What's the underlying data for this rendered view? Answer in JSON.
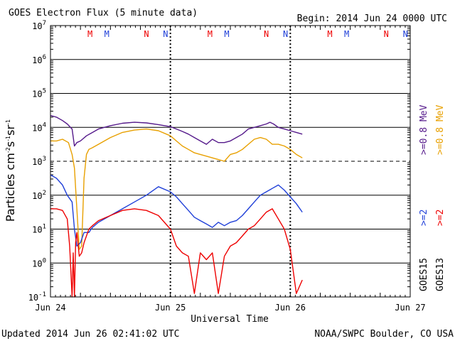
{
  "chart_data": {
    "type": "line",
    "title": "GOES Electron Flux (5 minute data)",
    "begin_label": "Begin: 2014 Jun 24 0000 UTC",
    "xlabel": "Universal Time",
    "ylabel": {
      "base": "Particles cm",
      "e1": "-2",
      "s": "s",
      "e2": "-1",
      "sr": "sr",
      "e3": "-1"
    },
    "x_tick_labels": [
      "Jun 24",
      "Jun 25",
      "Jun 26",
      "Jun 27"
    ],
    "xlim_days": [
      0,
      3
    ],
    "ylim_exp": [
      -1,
      7
    ],
    "y_ticks": [
      {
        "base": "10",
        "exp": "7"
      },
      {
        "base": "10",
        "exp": "6"
      },
      {
        "base": "10",
        "exp": "5"
      },
      {
        "base": "10",
        "exp": "4"
      },
      {
        "base": "10",
        "exp": "3"
      },
      {
        "base": "10",
        "exp": "2"
      },
      {
        "base": "10",
        "exp": "1"
      },
      {
        "base": "10",
        "exp": "0"
      },
      {
        "base": "10",
        "exp": "-1"
      }
    ],
    "threshold_line_exp": 3,
    "footer_left": "Updated 2014 Jun 26 02:41:02 UTC",
    "footer_right": "NOAA/SWPC Boulder, CO USA",
    "legend": [
      {
        "text": ">=0.8 MeV",
        "color": "#551a8b"
      },
      {
        "text": ">=0.8 MeV",
        "color": "#e8a000"
      },
      {
        "text": ">=2",
        "color": "#1f3fd8"
      },
      {
        "text": ">=2",
        "color": "#ee0000"
      },
      {
        "text": "GOES15",
        "color": "#000000"
      },
      {
        "text": "GOES13",
        "color": "#000000"
      }
    ],
    "markers": [
      {
        "day": 0.33,
        "label": "M",
        "color": "#ee0000"
      },
      {
        "day": 0.47,
        "label": "M",
        "color": "#1f3fd8"
      },
      {
        "day": 0.8,
        "label": "N",
        "color": "#ee0000"
      },
      {
        "day": 0.96,
        "label": "N",
        "color": "#1f3fd8"
      },
      {
        "day": 1.33,
        "label": "M",
        "color": "#ee0000"
      },
      {
        "day": 1.47,
        "label": "M",
        "color": "#1f3fd8"
      },
      {
        "day": 1.8,
        "label": "N",
        "color": "#ee0000"
      },
      {
        "day": 1.96,
        "label": "N",
        "color": "#1f3fd8"
      },
      {
        "day": 2.33,
        "label": "M",
        "color": "#ee0000"
      },
      {
        "day": 2.47,
        "label": "M",
        "color": "#1f3fd8"
      },
      {
        "day": 2.8,
        "label": "N",
        "color": "#ee0000"
      },
      {
        "day": 2.96,
        "label": "N",
        "color": "#1f3fd8"
      }
    ],
    "series": [
      {
        "name": "GOES15 >=0.8 MeV",
        "color": "#551a8b",
        "x": [
          0,
          0.05,
          0.1,
          0.14,
          0.18,
          0.2,
          0.22,
          0.25,
          0.3,
          0.4,
          0.5,
          0.6,
          0.7,
          0.8,
          0.9,
          1.0,
          1.05,
          1.1,
          1.15,
          1.2,
          1.25,
          1.3,
          1.35,
          1.4,
          1.45,
          1.5,
          1.55,
          1.6,
          1.65,
          1.7,
          1.75,
          1.8,
          1.83,
          1.86,
          1.9,
          1.95,
          2.0,
          2.05,
          2.1
        ],
        "y": [
          4.35,
          4.3,
          4.2,
          4.1,
          3.95,
          3.45,
          3.55,
          3.6,
          3.75,
          3.95,
          4.05,
          4.12,
          4.15,
          4.13,
          4.08,
          4.02,
          3.95,
          3.88,
          3.8,
          3.7,
          3.6,
          3.5,
          3.65,
          3.55,
          3.55,
          3.6,
          3.7,
          3.8,
          3.95,
          4.0,
          4.05,
          4.1,
          4.15,
          4.1,
          4.0,
          3.95,
          3.9,
          3.85,
          3.8
        ]
      },
      {
        "name": "GOES13 >=0.8 MeV",
        "color": "#e8a000",
        "x": [
          0,
          0.05,
          0.1,
          0.15,
          0.18,
          0.2,
          0.22,
          0.24,
          0.26,
          0.28,
          0.3,
          0.32,
          0.35,
          0.4,
          0.5,
          0.6,
          0.7,
          0.8,
          0.9,
          1.0,
          1.05,
          1.1,
          1.15,
          1.2,
          1.25,
          1.3,
          1.35,
          1.4,
          1.45,
          1.5,
          1.55,
          1.6,
          1.65,
          1.7,
          1.75,
          1.8,
          1.85,
          1.9,
          1.95,
          2.0,
          2.05,
          2.1
        ],
        "y": [
          3.6,
          3.6,
          3.65,
          3.55,
          3.2,
          2.8,
          1.6,
          0.4,
          0.5,
          2.5,
          3.2,
          3.35,
          3.4,
          3.5,
          3.7,
          3.85,
          3.92,
          3.95,
          3.9,
          3.75,
          3.6,
          3.45,
          3.35,
          3.25,
          3.2,
          3.15,
          3.1,
          3.05,
          3.0,
          3.2,
          3.25,
          3.35,
          3.5,
          3.65,
          3.7,
          3.65,
          3.5,
          3.5,
          3.45,
          3.35,
          3.2,
          3.1
        ]
      },
      {
        "name": "GOES15 >=2",
        "color": "#1f3fd8",
        "x": [
          0,
          0.05,
          0.1,
          0.14,
          0.18,
          0.2,
          0.22,
          0.25,
          0.28,
          0.32,
          0.35,
          0.4,
          0.45,
          0.5,
          0.6,
          0.7,
          0.8,
          0.9,
          1.0,
          1.05,
          1.1,
          1.15,
          1.2,
          1.25,
          1.3,
          1.35,
          1.4,
          1.45,
          1.5,
          1.55,
          1.6,
          1.65,
          1.7,
          1.75,
          1.8,
          1.85,
          1.9,
          1.95,
          2.0,
          2.05,
          2.1
        ],
        "y": [
          2.6,
          2.5,
          2.3,
          2.0,
          1.8,
          1.0,
          0.5,
          0.6,
          0.9,
          0.9,
          1.05,
          1.2,
          1.3,
          1.4,
          1.6,
          1.8,
          2.0,
          2.25,
          2.1,
          1.95,
          1.75,
          1.55,
          1.35,
          1.25,
          1.15,
          1.05,
          1.2,
          1.1,
          1.2,
          1.25,
          1.4,
          1.6,
          1.8,
          2.0,
          2.1,
          2.2,
          2.3,
          2.15,
          1.95,
          1.75,
          1.5
        ]
      },
      {
        "name": "GOES13 >=2",
        "color": "#ee0000",
        "x": [
          0,
          0.05,
          0.1,
          0.14,
          0.16,
          0.18,
          0.19,
          0.2,
          0.21,
          0.22,
          0.24,
          0.26,
          0.28,
          0.3,
          0.32,
          0.35,
          0.4,
          0.5,
          0.6,
          0.7,
          0.8,
          0.9,
          1.0,
          1.05,
          1.1,
          1.15,
          1.2,
          1.25,
          1.3,
          1.35,
          1.4,
          1.45,
          1.5,
          1.55,
          1.6,
          1.65,
          1.7,
          1.75,
          1.8,
          1.85,
          1.9,
          1.95,
          2.0,
          2.05,
          2.1
        ],
        "y": [
          1.6,
          1.6,
          1.55,
          1.3,
          0.5,
          -1.0,
          0.3,
          -1.0,
          0.6,
          0.9,
          0.2,
          0.3,
          0.6,
          0.8,
          1.0,
          1.1,
          1.25,
          1.4,
          1.55,
          1.6,
          1.55,
          1.4,
          1.0,
          0.5,
          0.3,
          0.2,
          -0.9,
          0.3,
          0.1,
          0.3,
          -0.9,
          0.2,
          0.5,
          0.6,
          0.8,
          1.0,
          1.1,
          1.3,
          1.5,
          1.6,
          1.3,
          1.0,
          0.4,
          -0.9,
          -0.5
        ]
      }
    ]
  }
}
